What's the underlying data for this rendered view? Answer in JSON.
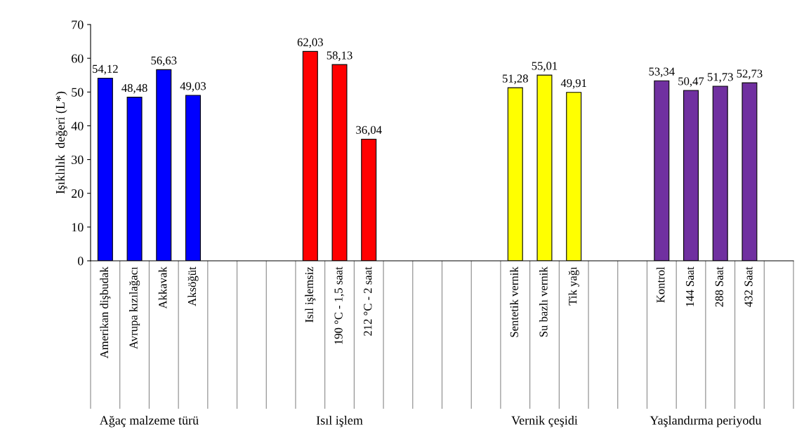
{
  "chart_data": {
    "type": "bar",
    "ylabel": "Işıklılık  değeri (L*)",
    "categories": [
      "Amerikan dişbudak",
      "Avrupa kızılağacı",
      "Akkavak",
      "Aksöğüt",
      null,
      null,
      null,
      "Isıl işlemsiz",
      "190 °C - 1,5 saat",
      "212 °C - 2 saat",
      null,
      null,
      null,
      null,
      "Sentetik vernik",
      "Su bazlı vernik",
      "Tik yağı",
      null,
      null,
      "Kontrol",
      "144 Saat",
      "288 Saat",
      "432 Saat",
      null
    ],
    "values": [
      54.12,
      48.48,
      56.63,
      49.03,
      null,
      null,
      null,
      62.03,
      58.13,
      36.04,
      null,
      null,
      null,
      null,
      51.28,
      55.01,
      49.91,
      null,
      null,
      53.34,
      50.47,
      51.73,
      52.73,
      null
    ],
    "value_labels": [
      "54,12",
      "48,48",
      "56,63",
      "49,03",
      null,
      null,
      null,
      "62,03",
      "58,13",
      "36,04",
      null,
      null,
      null,
      null,
      "51,28",
      "55,01",
      "49,91",
      null,
      null,
      "53,34",
      "50,47",
      "51,73",
      "52,73",
      null
    ],
    "colors": [
      "#0000ff",
      "#0000ff",
      "#0000ff",
      "#0000ff",
      null,
      null,
      null,
      "#ff0000",
      "#ff0000",
      "#ff0000",
      null,
      null,
      null,
      null,
      "#ffff00",
      "#ffff00",
      "#ffff00",
      null,
      null,
      "#7030a0",
      "#7030a0",
      "#7030a0",
      "#7030a0",
      null
    ],
    "annotations": [
      "Ağaç malzeme türü",
      "Isıl işlem",
      "Vernik çeşidi",
      "Yaşlandırma periyodu"
    ],
    "ylim": [
      0,
      70
    ],
    "yticks": [
      0,
      10,
      20,
      30,
      40,
      50,
      60,
      70
    ],
    "grid": false,
    "legend": false
  }
}
